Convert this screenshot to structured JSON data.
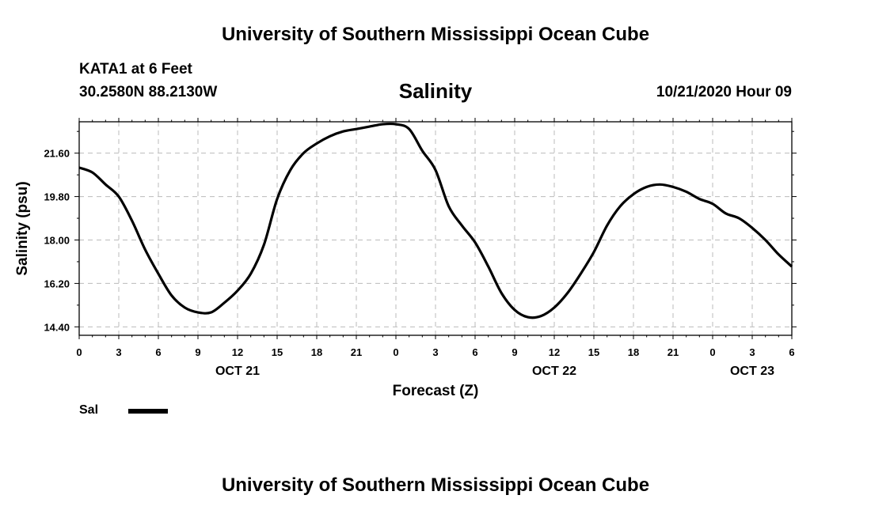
{
  "header": {
    "title": "University of Southern Mississippi Ocean Cube",
    "station": "KATA1 at 6 Feet",
    "coordinates": "30.2580N 88.2130W",
    "timestamp": "10/21/2020 Hour 09"
  },
  "footer": {
    "title": "University of Southern Mississippi Ocean Cube"
  },
  "legend": {
    "label": "Sal"
  },
  "colors": {
    "line": "#000000",
    "grid": "#bbbbbb"
  },
  "chart_data": {
    "type": "line",
    "title": "Salinity",
    "xlabel": "Forecast (Z)",
    "ylabel": "Salinity (psu)",
    "xlim": [
      0,
      54
    ],
    "ylim": [
      14.05,
      22.9
    ],
    "grid": true,
    "legend_position": "bottom-left",
    "x_ticks": [
      0,
      3,
      6,
      9,
      12,
      15,
      18,
      21,
      24,
      27,
      30,
      33,
      36,
      39,
      42,
      45,
      48,
      51,
      54
    ],
    "x_tick_labels": [
      "0",
      "3",
      "6",
      "9",
      "12",
      "15",
      "18",
      "21",
      "0",
      "3",
      "6",
      "9",
      "12",
      "15",
      "18",
      "21",
      "0",
      "3",
      "6"
    ],
    "date_labels": [
      {
        "x": 12,
        "label": "OCT 21"
      },
      {
        "x": 36,
        "label": "OCT 22"
      },
      {
        "x": 51,
        "label": "OCT 23"
      }
    ],
    "y_ticks": [
      14.4,
      16.2,
      18.0,
      19.8,
      21.6
    ],
    "y_tick_labels": [
      "14.40",
      "16.20",
      "18.00",
      "19.80",
      "21.60"
    ],
    "series": [
      {
        "name": "Sal",
        "x": [
          0,
          1,
          2,
          3,
          4,
          5,
          6,
          7,
          8,
          9,
          10,
          11,
          12,
          13,
          14,
          15,
          16,
          17,
          18,
          19,
          20,
          21,
          22,
          23,
          24,
          25,
          26,
          27,
          28,
          29,
          30,
          31,
          32,
          33,
          34,
          35,
          36,
          37,
          38,
          39,
          40,
          41,
          42,
          43,
          44,
          45,
          46,
          47,
          48,
          49,
          50,
          51,
          52,
          53,
          54
        ],
        "values": [
          21.0,
          20.8,
          20.3,
          19.8,
          18.8,
          17.6,
          16.6,
          15.7,
          15.2,
          15.0,
          15.0,
          15.4,
          15.9,
          16.6,
          17.8,
          19.7,
          20.9,
          21.6,
          22.0,
          22.3,
          22.5,
          22.6,
          22.7,
          22.8,
          22.8,
          22.6,
          21.7,
          20.9,
          19.4,
          18.6,
          17.9,
          16.9,
          15.8,
          15.1,
          14.8,
          14.85,
          15.2,
          15.8,
          16.6,
          17.5,
          18.6,
          19.4,
          19.9,
          20.2,
          20.3,
          20.2,
          20.0,
          19.7,
          19.5,
          19.1,
          18.9,
          18.5,
          18.0,
          17.4,
          16.9
        ]
      }
    ]
  }
}
